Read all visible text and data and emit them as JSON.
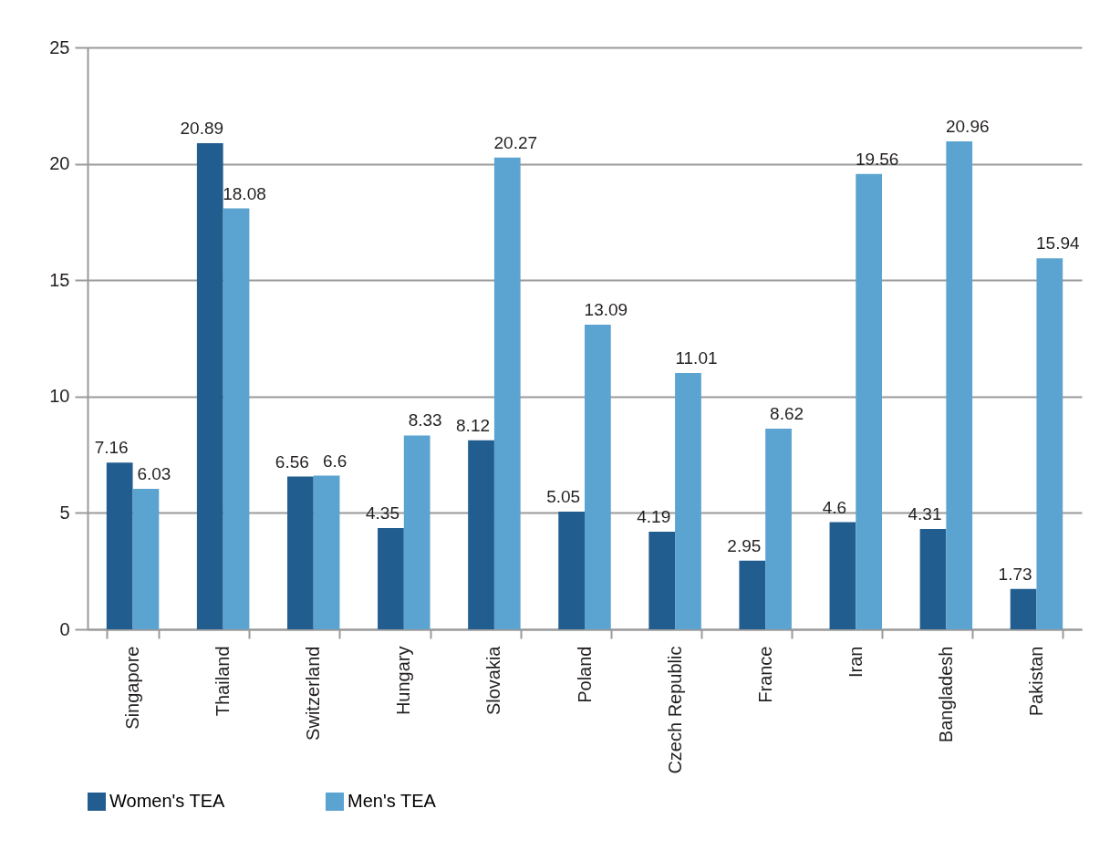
{
  "chart_data": {
    "type": "bar",
    "categories": [
      "Singapore",
      "Thailand",
      "Switzerland",
      "Hungary",
      "Slovakia",
      "Poland",
      "Czech Republic",
      "France",
      "Iran",
      "Bangladesh",
      "Pakistan"
    ],
    "series": [
      {
        "name": "Women's TEA",
        "color": "#215d8f",
        "values": [
          7.16,
          20.89,
          6.56,
          4.35,
          8.12,
          5.05,
          4.19,
          2.95,
          4.6,
          4.31,
          1.73
        ]
      },
      {
        "name": "Men's TEA",
        "color": "#5ba3d0",
        "values": [
          6.03,
          18.08,
          6.6,
          8.33,
          20.27,
          13.09,
          11.01,
          8.62,
          19.56,
          20.96,
          15.94
        ]
      }
    ],
    "ylim": [
      0,
      25
    ],
    "yticks": [
      0,
      5,
      10,
      15,
      20,
      25
    ],
    "grid": "y",
    "legend": "bottom",
    "data_labels": true
  }
}
